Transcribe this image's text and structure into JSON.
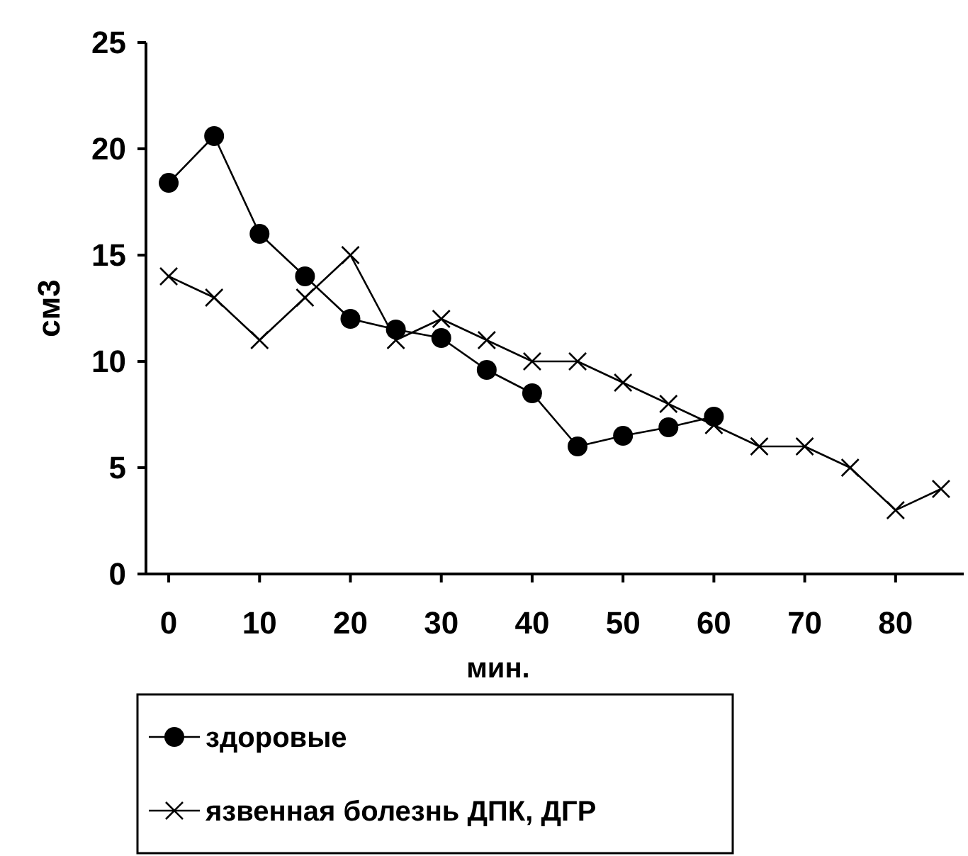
{
  "chart_data": {
    "type": "line",
    "xlabel": "мин.",
    "ylabel": "см3",
    "xlim": [
      -2.5,
      87.5
    ],
    "xticks": [
      0,
      10,
      20,
      30,
      40,
      50,
      60,
      70,
      80
    ],
    "ylim": [
      0,
      25
    ],
    "yticks": [
      0,
      5,
      10,
      15,
      20,
      25
    ],
    "grid": false,
    "legend": "bottom",
    "series": [
      {
        "name": "здоровые",
        "color": "#000000",
        "marker": "circle",
        "x": [
          0,
          5,
          10,
          15,
          20,
          25,
          30,
          35,
          40,
          45,
          50,
          55,
          60
        ],
        "values": [
          18.4,
          20.6,
          16,
          14,
          12,
          11.5,
          11.1,
          9.6,
          8.5,
          6,
          6.5,
          6.9,
          7.4
        ]
      },
      {
        "name": "язвенная болезнь ДПК, ДГР",
        "color": "#000000",
        "marker": "cross",
        "x": [
          0,
          5,
          10,
          15,
          20,
          25,
          30,
          35,
          40,
          45,
          50,
          55,
          60,
          65,
          70,
          75,
          80,
          85
        ],
        "values": [
          14,
          13,
          11,
          13,
          15,
          11,
          12,
          11,
          10,
          10,
          9,
          8,
          7,
          6,
          6,
          5,
          3,
          4
        ]
      }
    ]
  }
}
